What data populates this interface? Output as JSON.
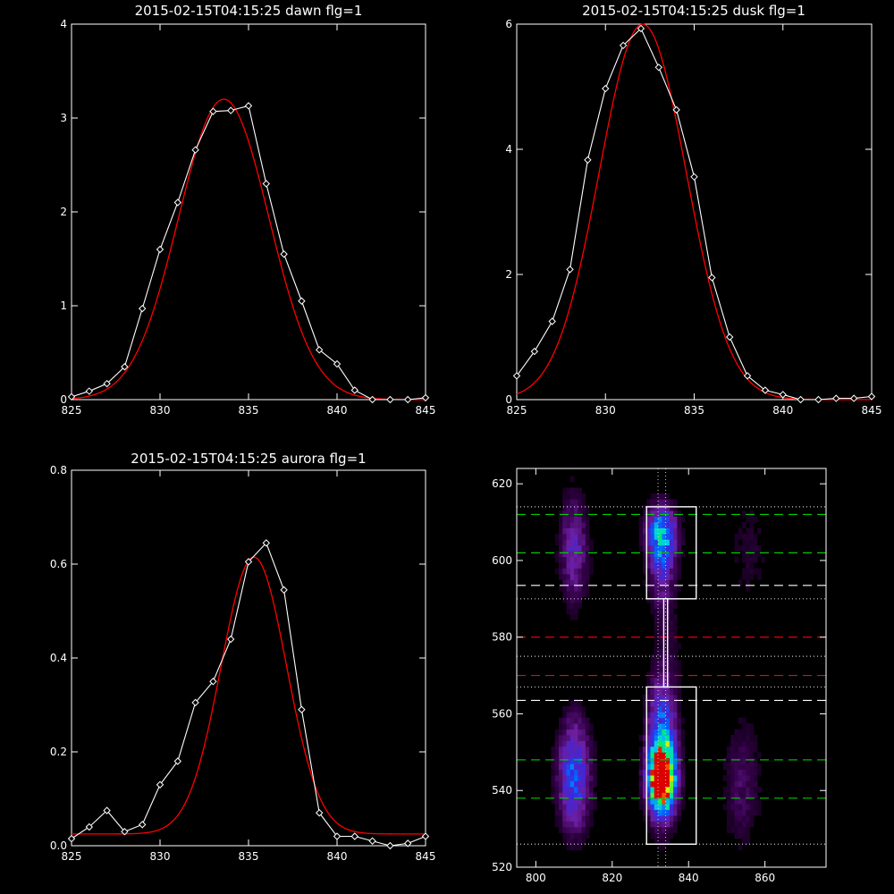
{
  "colors": {
    "background": "#000000",
    "axes": "#ffffff",
    "observed": "#ffffff",
    "fit": "#ff0000"
  },
  "chart_data": [
    {
      "type": "line",
      "title": "2015-02-15T04:15:25 dawn flg=1",
      "xlim": [
        825,
        845
      ],
      "ylim": [
        0,
        4
      ],
      "xticks": [
        825,
        830,
        835,
        840,
        845
      ],
      "yticks": [
        0,
        1,
        2,
        3,
        4
      ],
      "series": [
        {
          "role": "observed",
          "marker": "diamond",
          "x": [
            825,
            826,
            827,
            828,
            829,
            830,
            831,
            832,
            833,
            834,
            835,
            836,
            837,
            838,
            839,
            840,
            841,
            842,
            843,
            844,
            845
          ],
          "y": [
            0.03,
            0.09,
            0.17,
            0.35,
            0.97,
            1.6,
            2.1,
            2.66,
            3.07,
            3.08,
            3.13,
            2.3,
            1.55,
            1.05,
            0.53,
            0.38,
            0.1,
            0.0,
            0.0,
            0.0,
            0.02
          ]
        },
        {
          "role": "fit",
          "peak": 3.2,
          "center": 833.6,
          "sigma": 2.55,
          "offset": 0.0
        }
      ]
    },
    {
      "type": "line",
      "title": "2015-02-15T04:15:25 dusk flg=1",
      "xlim": [
        825,
        845
      ],
      "ylim": [
        0,
        6
      ],
      "xticks": [
        825,
        830,
        835,
        840,
        845
      ],
      "yticks": [
        0,
        2,
        4,
        6
      ],
      "series": [
        {
          "role": "observed",
          "marker": "diamond",
          "x": [
            825,
            826,
            827,
            828,
            829,
            830,
            831,
            832,
            833,
            834,
            835,
            836,
            837,
            838,
            839,
            840,
            841,
            842,
            843,
            844,
            845
          ],
          "y": [
            0.38,
            0.77,
            1.25,
            2.08,
            3.83,
            4.97,
            5.66,
            5.93,
            5.31,
            4.63,
            3.56,
            1.95,
            1.0,
            0.38,
            0.15,
            0.08,
            0.0,
            0.0,
            0.02,
            0.02,
            0.05
          ]
        },
        {
          "role": "fit",
          "peak": 6.0,
          "center": 832.1,
          "sigma": 2.45,
          "offset": 0.0
        }
      ]
    },
    {
      "type": "line",
      "title": "2015-02-15T04:15:25 aurora flg=1",
      "xlim": [
        825,
        845
      ],
      "ylim": [
        0,
        0.8
      ],
      "xticks": [
        825,
        830,
        835,
        840,
        845
      ],
      "yticks": [
        0.0,
        0.2,
        0.4,
        0.6,
        0.8
      ],
      "ytick_labels": [
        "0.0",
        "0.2",
        "0.4",
        "0.6",
        "0.8"
      ],
      "series": [
        {
          "role": "observed",
          "marker": "diamond",
          "x": [
            825,
            826,
            827,
            828,
            829,
            830,
            831,
            832,
            833,
            834,
            835,
            836,
            837,
            838,
            839,
            840,
            841,
            842,
            843,
            844,
            845
          ],
          "y": [
            0.015,
            0.04,
            0.075,
            0.03,
            0.045,
            0.13,
            0.18,
            0.305,
            0.35,
            0.44,
            0.605,
            0.645,
            0.545,
            0.29,
            0.07,
            0.02,
            0.02,
            0.01,
            0.0,
            0.005,
            0.02
          ]
        },
        {
          "role": "fit",
          "peak": 0.59,
          "center": 835.3,
          "sigma": 1.85,
          "offset": 0.025
        }
      ]
    },
    {
      "type": "heatmap",
      "xlim": [
        795,
        876
      ],
      "ylim": [
        520,
        624
      ],
      "xticks": [
        800,
        820,
        840,
        860
      ],
      "yticks": [
        520,
        540,
        560,
        580,
        600,
        620
      ],
      "blobs": [
        {
          "x": 833,
          "y": 543,
          "amp": 1.0,
          "sx": 2.4,
          "sy": 5.5
        },
        {
          "x": 833,
          "y": 551,
          "amp": 0.55,
          "sx": 2.6,
          "sy": 12
        },
        {
          "x": 810,
          "y": 544,
          "amp": 0.45,
          "sx": 3.0,
          "sy": 10
        },
        {
          "x": 833,
          "y": 607,
          "amp": 0.5,
          "sx": 2.8,
          "sy": 5
        },
        {
          "x": 833,
          "y": 598,
          "amp": 0.25,
          "sx": 2.5,
          "sy": 8
        },
        {
          "x": 810,
          "y": 603,
          "amp": 0.28,
          "sx": 2.6,
          "sy": 10
        },
        {
          "x": 854,
          "y": 542,
          "amp": 0.15,
          "sx": 3.5,
          "sy": 12
        },
        {
          "x": 856,
          "y": 603,
          "amp": 0.08,
          "sx": 4.0,
          "sy": 12
        },
        {
          "x": 835,
          "y": 578,
          "amp": 0.06,
          "sx": 2.5,
          "sy": 10
        }
      ],
      "rois": [
        {
          "x0": 829,
          "x1": 842,
          "y0": 526,
          "y1": 567
        },
        {
          "x0": 829,
          "x1": 842,
          "y0": 590,
          "y1": 614
        }
      ],
      "connector": {
        "x0": 833.5,
        "x1": 834.5,
        "y0": 567,
        "y1": 590
      },
      "hlines": [
        {
          "y": 612,
          "color": "#00cc00",
          "style": "dashed"
        },
        {
          "y": 602,
          "color": "#00cc00",
          "style": "dashed"
        },
        {
          "y": 593.5,
          "color": "#ffffff",
          "style": "dashed"
        },
        {
          "y": 580,
          "color": "#ff0000",
          "style": "dashed"
        },
        {
          "y": 570,
          "color": "#ff0000",
          "style": "dashed"
        },
        {
          "y": 563.5,
          "color": "#ffffff",
          "style": "dashed"
        },
        {
          "y": 548,
          "color": "#00cc00",
          "style": "dashed"
        },
        {
          "y": 538,
          "color": "#00cc00",
          "style": "dashed"
        },
        {
          "y": 614,
          "color": "#cccccc",
          "style": "dotted"
        },
        {
          "y": 590,
          "color": "#cccccc",
          "style": "dotted"
        },
        {
          "y": 575,
          "color": "#cccccc",
          "style": "dotted"
        },
        {
          "y": 567,
          "color": "#cccccc",
          "style": "dotted"
        },
        {
          "y": 526,
          "color": "#cccccc",
          "style": "dotted"
        }
      ],
      "vlines": [
        {
          "x": 832,
          "color": "#cccccc",
          "style": "dotted"
        },
        {
          "x": 834,
          "color": "#cccccc",
          "style": "dotted"
        }
      ]
    }
  ]
}
